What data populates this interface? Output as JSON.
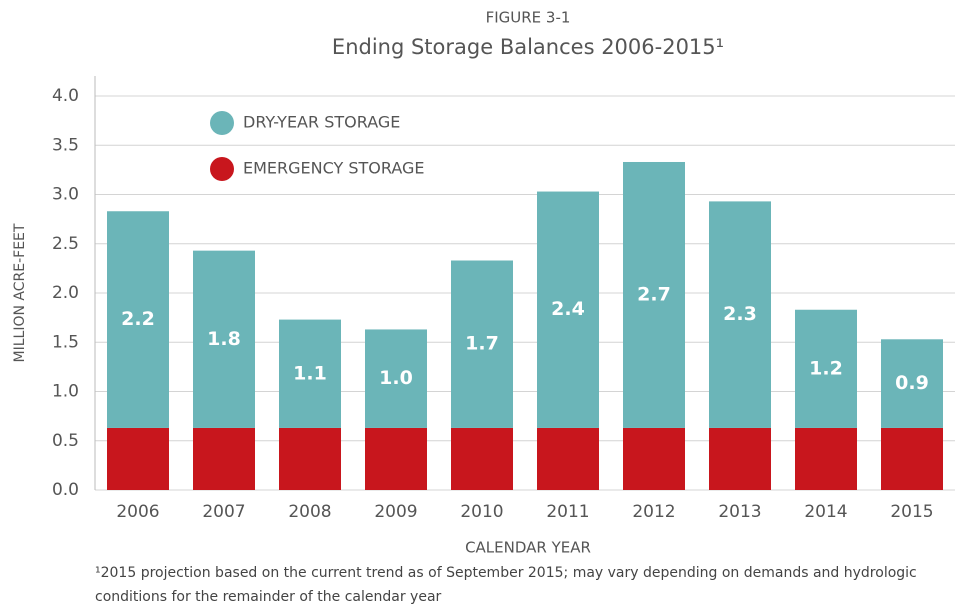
{
  "chart_data": {
    "type": "stacked_bar",
    "supertitle": "FIGURE 3-1",
    "title": "Ending Storage Balances 2006-2015¹",
    "ylabel": "MILLION ACRE-FEET",
    "xlabel": "CALENDAR YEAR",
    "footnote": "¹2015 projection based on the current trend as of September 2015; may vary depending on demands and hydrologic conditions for the remainder of the calendar year",
    "categories": [
      "2006",
      "2007",
      "2008",
      "2009",
      "2010",
      "2011",
      "2012",
      "2013",
      "2014",
      "2015"
    ],
    "series": [
      {
        "name": "EMERGENCY STORAGE",
        "color": "#c8161d",
        "values": [
          0.63,
          0.63,
          0.63,
          0.63,
          0.63,
          0.63,
          0.63,
          0.63,
          0.63,
          0.63
        ]
      },
      {
        "name": "DRY-YEAR STORAGE",
        "color": "#6bb5b8",
        "values": [
          2.2,
          1.8,
          1.1,
          1.0,
          1.7,
          2.4,
          2.7,
          2.3,
          1.2,
          0.9
        ],
        "value_labels": [
          "2.2",
          "1.8",
          "1.1",
          "1.0",
          "1.7",
          "2.4",
          "2.7",
          "2.3",
          "1.2",
          "0.9"
        ]
      }
    ],
    "ylim": [
      0,
      4
    ],
    "yticks": [
      {
        "value": 0,
        "label": "0.0"
      },
      {
        "value": 0.5,
        "label": "0.5"
      },
      {
        "value": 1,
        "label": "1.0"
      },
      {
        "value": 1.5,
        "label": "1.5"
      },
      {
        "value": 2,
        "label": "2.0"
      },
      {
        "value": 2.5,
        "label": "2.5"
      },
      {
        "value": 3,
        "label": "3.0"
      },
      {
        "value": 3.5,
        "label": "3.5"
      },
      {
        "value": 4,
        "label": "4.0"
      }
    ],
    "grid": true,
    "legend": "upper left"
  }
}
